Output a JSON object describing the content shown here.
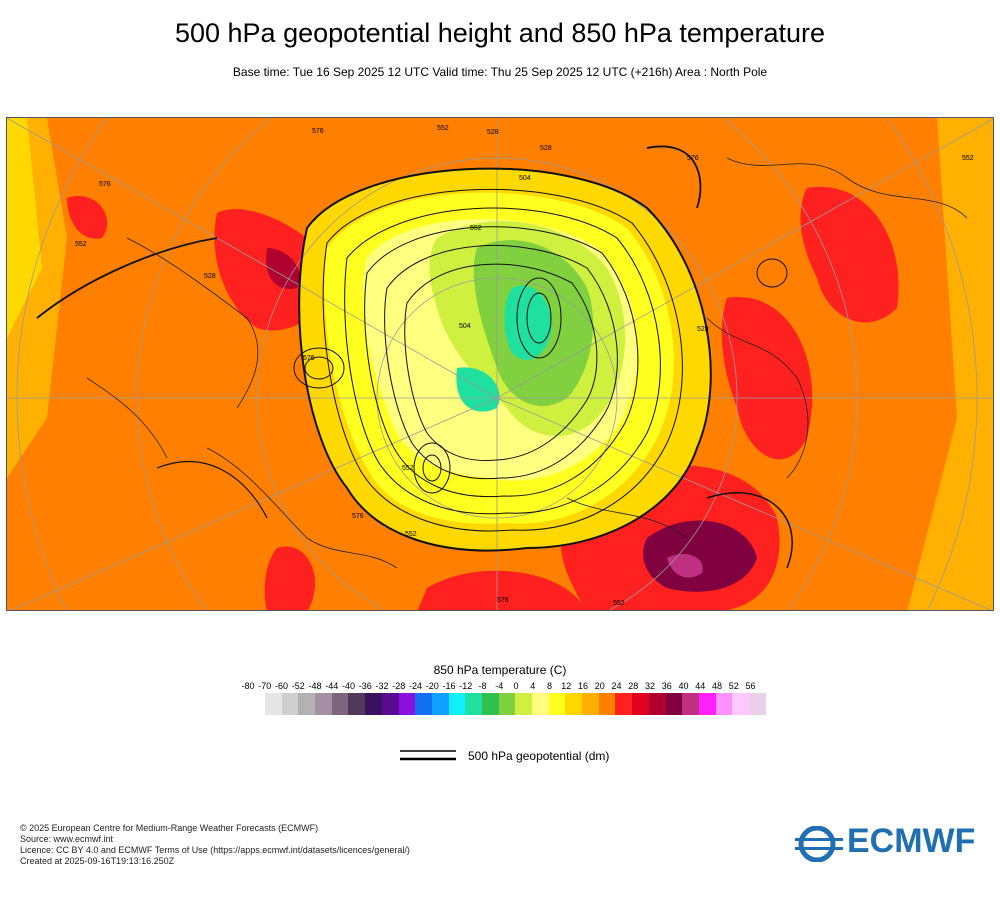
{
  "title": "500 hPa geopotential height and 850 hPa temperature",
  "subtitle": "Base time: Tue 16 Sep 2025 12 UTC Valid time: Thu 25 Sep 2025 12 UTC (+216h) Area : North Pole",
  "legend": {
    "title": "850 hPa temperature (C)",
    "ticks": [
      "-80",
      "-70",
      "-60",
      "-52",
      "-48",
      "-44",
      "-40",
      "-36",
      "-32",
      "-28",
      "-24",
      "-20",
      "-16",
      "-12",
      "-8",
      "-4",
      "0",
      "4",
      "8",
      "12",
      "16",
      "20",
      "24",
      "28",
      "32",
      "36",
      "40",
      "44",
      "48",
      "52",
      "56"
    ],
    "colors": [
      "#e6e6e6",
      "#cfcfcf",
      "#b2b2b2",
      "#a58fa5",
      "#7d667d",
      "#4f3a5a",
      "#3a1060",
      "#5a0a90",
      "#8a10e0",
      "#1070f0",
      "#10a0ff",
      "#10f0f8",
      "#20e0a0",
      "#30c050",
      "#80d040",
      "#d0f040",
      "#ffff80",
      "#ffff20",
      "#ffd800",
      "#ffb000",
      "#ff8000",
      "#ff2020",
      "#e00020",
      "#b00030",
      "#800040",
      "#c03080",
      "#ff20ff",
      "#ff90ff",
      "#ffc8ff",
      "#e8d0e8"
    ],
    "contour_label": "500 hPa geopotential (dm)"
  },
  "map": {
    "contour_labels": [
      "576",
      "552",
      "528",
      "576",
      "552",
      "528",
      "504",
      "552",
      "576",
      "528",
      "552",
      "576",
      "504",
      "552",
      "576",
      "552",
      "528",
      "576",
      "552"
    ]
  },
  "footer": {
    "line1": "© 2025 European Centre for Medium-Range Weather Forecasts (ECMWF)",
    "line2": "Source: www.ecmwf.int",
    "line3": "Licence: CC BY 4.0 and ECMWF Terms of Use (https://apps.ecmwf.int/datasets/licences/general/)",
    "line4": "Created at 2025-09-16T19:13:16.250Z"
  },
  "logo_text": "ECMWF"
}
